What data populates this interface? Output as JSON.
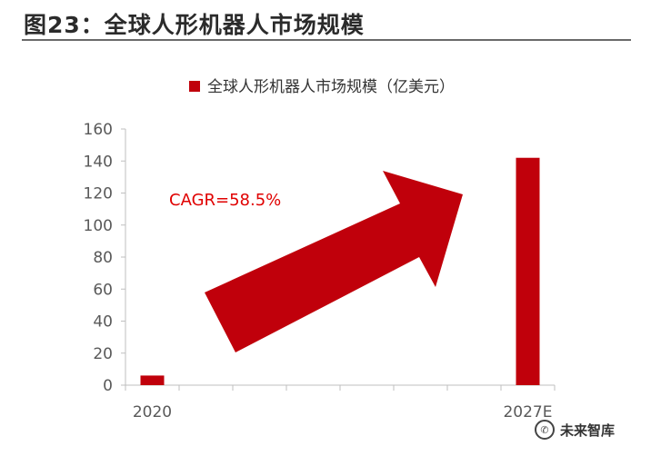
{
  "figure_title": "图23：全球人形机器人市场规模",
  "watermark": {
    "text": "未来智库",
    "icon": "wechat-icon"
  },
  "colors": {
    "bar": "#c0000b",
    "arrow": "#c0000b",
    "annotation": "#e00000",
    "axis": "#bfbfbf",
    "text": "#595959"
  },
  "chart_data": {
    "type": "bar",
    "title": "",
    "xlabel": "",
    "ylabel": "",
    "categories": [
      "2020",
      "",
      "",
      "",
      "",
      "",
      "",
      "2027E"
    ],
    "series": [
      {
        "name": "全球人形机器人市场规模（亿美元）",
        "values": [
          6,
          null,
          null,
          null,
          null,
          null,
          null,
          142
        ]
      }
    ],
    "ylim": [
      0,
      160
    ],
    "yticks": [
      0,
      20,
      40,
      60,
      80,
      100,
      120,
      140,
      160
    ],
    "grid": false,
    "legend": "top",
    "annotations": [
      {
        "text": "CAGR=58.5%",
        "type": "trend-arrow",
        "direction": "up-right"
      }
    ]
  }
}
